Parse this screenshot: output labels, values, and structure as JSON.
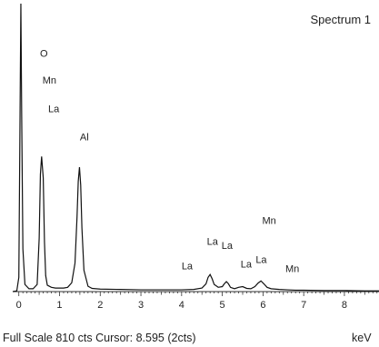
{
  "chart_data": {
    "type": "line",
    "title": "Spectrum 1",
    "xlabel": "keV",
    "xlim": [
      -0.15,
      8.85
    ],
    "ylim": [
      0,
      810
    ],
    "x_ticks": [
      0,
      1,
      2,
      3,
      4,
      5,
      6,
      7,
      8
    ],
    "footer": "Full Scale 810 cts Cursor: 8.595 (2cts)",
    "grid": false,
    "series": [
      {
        "x": [
          -0.15,
          -0.05,
          0.0,
          0.03,
          0.05,
          0.07,
          0.1,
          0.15,
          0.25,
          0.35,
          0.45,
          0.5,
          0.53,
          0.56,
          0.6,
          0.63,
          0.66,
          0.7,
          0.8,
          0.9,
          1.0,
          1.1,
          1.2,
          1.3,
          1.38,
          1.43,
          1.46,
          1.49,
          1.52,
          1.55,
          1.6,
          1.7,
          1.8,
          2.0,
          2.5,
          3.0,
          3.5,
          4.0,
          4.3,
          4.5,
          4.6,
          4.65,
          4.7,
          4.75,
          4.8,
          4.9,
          5.0,
          5.05,
          5.1,
          5.15,
          5.2,
          5.3,
          5.4,
          5.5,
          5.6,
          5.7,
          5.8,
          5.88,
          5.95,
          6.02,
          6.1,
          6.2,
          6.4,
          6.6,
          6.8,
          7.0,
          7.5,
          8.0,
          8.5,
          8.85
        ],
        "y": [
          0,
          2,
          40,
          500,
          810,
          500,
          120,
          20,
          8,
          8,
          20,
          150,
          330,
          380,
          320,
          140,
          45,
          18,
          12,
          10,
          10,
          10,
          12,
          25,
          80,
          210,
          310,
          350,
          300,
          180,
          60,
          15,
          9,
          7,
          6,
          5,
          5,
          5,
          6,
          10,
          22,
          40,
          48,
          36,
          20,
          12,
          14,
          22,
          28,
          22,
          12,
          8,
          12,
          14,
          9,
          8,
          14,
          24,
          30,
          22,
          12,
          8,
          6,
          5,
          4,
          4,
          3,
          3,
          2,
          2
        ]
      }
    ],
    "annotations": [
      {
        "text": "O",
        "x": 0.52,
        "y": 660
      },
      {
        "text": "Mn",
        "x": 0.58,
        "y": 585
      },
      {
        "text": "La",
        "x": 0.72,
        "y": 505
      },
      {
        "text": "Al",
        "x": 1.5,
        "y": 425
      },
      {
        "text": "La",
        "x": 4.0,
        "y": 62
      },
      {
        "text": "La",
        "x": 4.62,
        "y": 132
      },
      {
        "text": "La",
        "x": 4.98,
        "y": 120
      },
      {
        "text": "La",
        "x": 5.45,
        "y": 68
      },
      {
        "text": "La",
        "x": 5.82,
        "y": 80
      },
      {
        "text": "Mn",
        "x": 5.98,
        "y": 190
      },
      {
        "text": "Mn",
        "x": 6.55,
        "y": 55
      }
    ]
  }
}
